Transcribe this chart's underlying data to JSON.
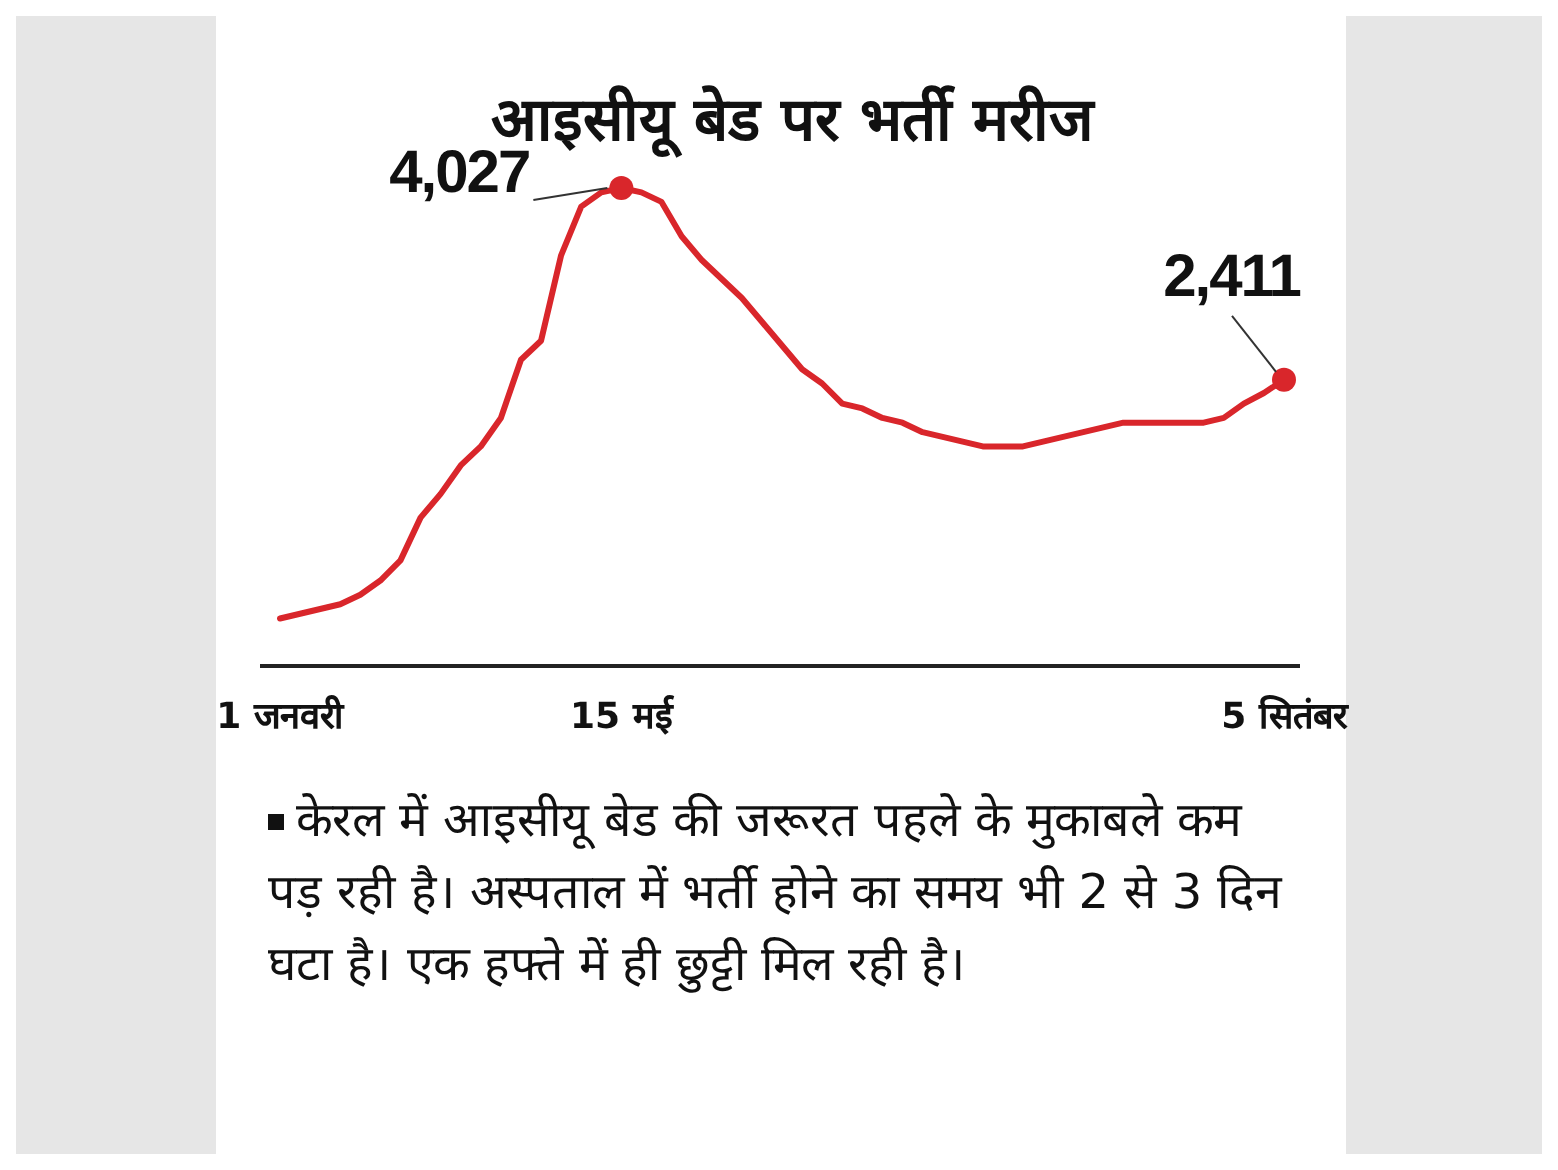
{
  "chart_data": {
    "type": "line",
    "title": "आइसीयू बेड पर भर्ती मरीज",
    "categories": [
      "1 जनवरी",
      null,
      null,
      null,
      null,
      null,
      null,
      null,
      null,
      null,
      null,
      null,
      null,
      null,
      null,
      null,
      null,
      "15 मई",
      null,
      null,
      null,
      null,
      null,
      null,
      null,
      null,
      null,
      null,
      null,
      null,
      null,
      null,
      null,
      null,
      null,
      null,
      null,
      null,
      null,
      null,
      null,
      null,
      null,
      null,
      null,
      null,
      null,
      null,
      null,
      null,
      "5 सितंबर"
    ],
    "series": [
      {
        "color": "#d9262b",
        "values": [
          400,
          440,
          480,
          520,
          600,
          720,
          890,
          1250,
          1450,
          1690,
          1850,
          2090,
          2580,
          2740,
          3460,
          3870,
          3990,
          4027,
          3990,
          3910,
          3620,
          3420,
          3260,
          3100,
          2900,
          2700,
          2500,
          2380,
          2210,
          2170,
          2090,
          2050,
          1970,
          1930,
          1890,
          1850,
          1850,
          1850,
          1890,
          1930,
          1970,
          2010,
          2050,
          2050,
          2050,
          2050,
          2050,
          2090,
          2210,
          2300,
          2411
        ]
      },
      {
        "type": "scatter",
        "color": "#d9262b",
        "marker": "circle",
        "x": [
          "15 मई",
          "5 सितंबर"
        ],
        "values": [
          4027,
          2411
        ],
        "value_labels": [
          "4,027",
          "2,411"
        ]
      }
    ],
    "annotations": [
      "केरल में आइसीयू बेड की जरूरत पहले के मुकाबले कम पड़ रही है। अस्पताल में भर्ती होने का समय भी 2 से 3 दिन घटा है। एक हफ्ते में ही छुट्टी मिल रही है।"
    ]
  }
}
